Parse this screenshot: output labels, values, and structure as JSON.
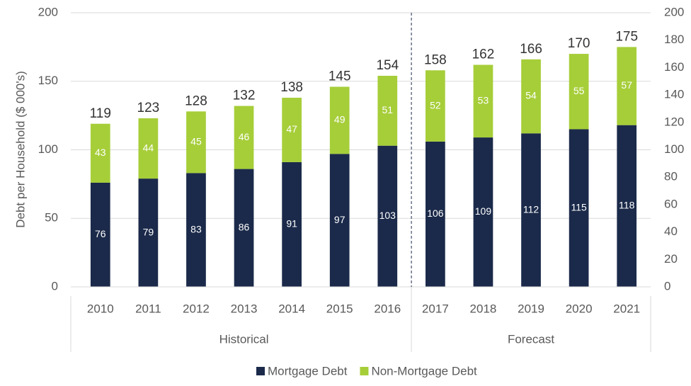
{
  "chart_data": {
    "type": "stacked_bar",
    "y_axis_label": "Debt per Household ($ 000's)",
    "categories": [
      "2010",
      "2011",
      "2012",
      "2013",
      "2014",
      "2015",
      "2016",
      "2017",
      "2018",
      "2019",
      "2020",
      "2021"
    ],
    "series": [
      {
        "name": "Mortgage Debt",
        "color": "#1b2a4a",
        "values": [
          76,
          79,
          83,
          86,
          91,
          97,
          103,
          106,
          109,
          112,
          115,
          118
        ]
      },
      {
        "name": "Non-Mortgage Debt",
        "color": "#a6ce39",
        "values": [
          43,
          44,
          45,
          46,
          47,
          49,
          51,
          52,
          53,
          54,
          55,
          57
        ]
      }
    ],
    "totals": [
      119,
      123,
      128,
      132,
      138,
      145,
      154,
      158,
      162,
      166,
      170,
      175
    ],
    "groups": [
      {
        "name": "Historical",
        "count": 7
      },
      {
        "name": "Forecast",
        "count": 5
      }
    ],
    "ylim": [
      0,
      200
    ],
    "yticks": [
      0,
      50,
      100,
      150,
      200
    ],
    "y2lim": [
      0,
      200
    ],
    "y2ticks": [
      0,
      20,
      40,
      60,
      80,
      100,
      120,
      140,
      160,
      180,
      200
    ],
    "grid": true,
    "legend": "bottom"
  }
}
